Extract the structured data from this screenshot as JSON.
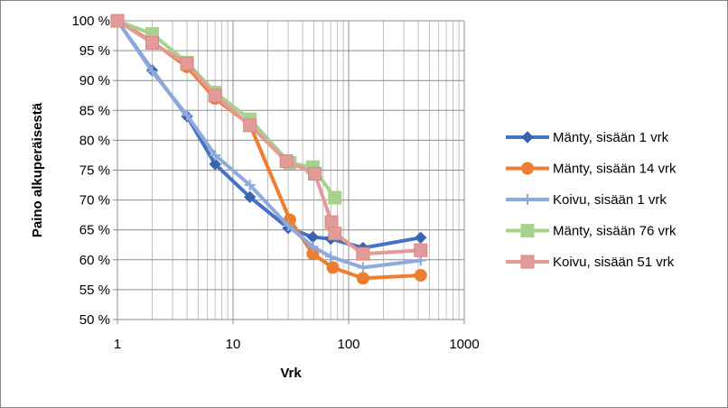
{
  "chart_data": {
    "type": "line",
    "title": "",
    "xlabel": "Vrk",
    "ylabel": "Paino alkuperäisestä",
    "x_scale": "log",
    "xlim": [
      1,
      1000
    ],
    "ylim": [
      50,
      100
    ],
    "y_unit": "%",
    "grid": "both",
    "legend_position": "right",
    "x_tick_labels": [
      "1",
      "10",
      "100",
      "1000"
    ],
    "y_tick_labels": [
      "50 %",
      "55 %",
      "60 %",
      "65 %",
      "70 %",
      "75 %",
      "80 %",
      "85 %",
      "90 %",
      "95 %",
      "100 %"
    ],
    "series": [
      {
        "name": "Mänty, sisään 1 vrk",
        "color": "#4472C4",
        "dark_color": "#3A64AE",
        "marker": "diamond",
        "points": [
          [
            1,
            100
          ],
          [
            2,
            91.7
          ],
          [
            4,
            84
          ],
          [
            7,
            76
          ],
          [
            14,
            70.5
          ],
          [
            30,
            65.3
          ],
          [
            49,
            63.8
          ],
          [
            70,
            63.5
          ],
          [
            133,
            62
          ],
          [
            420,
            63.7
          ]
        ]
      },
      {
        "name": "Mänty, sisään 14 vrk",
        "color": "#ED7D31",
        "marker": "circle",
        "points": [
          [
            1,
            100
          ],
          [
            2,
            96.5
          ],
          [
            4,
            92.3
          ],
          [
            7,
            87
          ],
          [
            14,
            82.6
          ],
          [
            31,
            66.7
          ],
          [
            49,
            61
          ],
          [
            73,
            58.7
          ],
          [
            133,
            56.9
          ],
          [
            420,
            57.4
          ]
        ]
      },
      {
        "name": "Koivu, sisään 1 vrk",
        "color": "#8EA9DB",
        "marker": "plus",
        "points": [
          [
            1,
            100
          ],
          [
            2,
            91.5
          ],
          [
            4,
            84.2
          ],
          [
            7,
            77.5
          ],
          [
            14,
            72.5
          ],
          [
            30,
            65.7
          ],
          [
            49,
            62.2
          ],
          [
            70,
            60.5
          ],
          [
            133,
            58.7
          ],
          [
            420,
            59.9
          ]
        ]
      },
      {
        "name": "Mänty, sisään 76 vrk",
        "color": "#A9D18E",
        "marker": "square",
        "points": [
          [
            1,
            100
          ],
          [
            2,
            97.8
          ],
          [
            4,
            93
          ],
          [
            7,
            88
          ],
          [
            14,
            83.5
          ],
          [
            31,
            76.2
          ],
          [
            49,
            75.5
          ],
          [
            76,
            70.4
          ]
        ]
      },
      {
        "name": "Koivu, sisään 51 vrk",
        "color": "#E39B9A",
        "dark_color": "#D98684",
        "marker": "square",
        "points": [
          [
            1,
            100
          ],
          [
            2,
            96.3
          ],
          [
            4,
            92.8
          ],
          [
            7,
            87.5
          ],
          [
            14,
            82.5
          ],
          [
            29,
            76.5
          ],
          [
            51,
            74.4
          ],
          [
            71,
            66.3
          ],
          [
            76,
            64.4
          ],
          [
            133,
            61
          ],
          [
            420,
            61.6
          ]
        ]
      }
    ]
  }
}
